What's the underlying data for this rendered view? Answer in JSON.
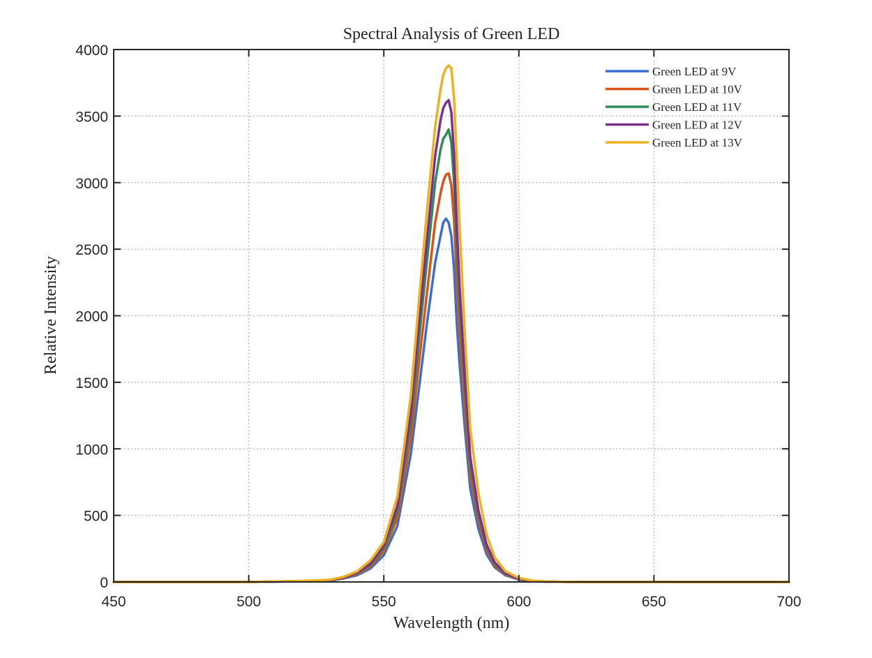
{
  "chart_data": {
    "type": "line",
    "title": "Spectral Analysis of Green LED",
    "xlabel": "Wavelength (nm)",
    "ylabel": "Relative Intensity",
    "xlim": [
      450,
      700
    ],
    "ylim": [
      0,
      4000
    ],
    "xticks": [
      450,
      500,
      550,
      600,
      650,
      700
    ],
    "yticks": [
      0,
      500,
      1000,
      1500,
      2000,
      2500,
      3000,
      3500,
      4000
    ],
    "grid": true,
    "legend_position": "top-right",
    "x": [
      450,
      500,
      520,
      530,
      535,
      540,
      545,
      550,
      555,
      560,
      563,
      566,
      569,
      571,
      572,
      573,
      574,
      575,
      576,
      577,
      578,
      580,
      582,
      585,
      588,
      591,
      595,
      600,
      605,
      610,
      620,
      650,
      700
    ],
    "series": [
      {
        "name": "Green LED at 9V",
        "color": "#3b6fcf",
        "values": [
          0,
          0,
          5,
          10,
          25,
          50,
          100,
          200,
          420,
          960,
          1450,
          1950,
          2400,
          2600,
          2700,
          2730,
          2700,
          2600,
          2350,
          1950,
          1650,
          1150,
          700,
          400,
          210,
          110,
          50,
          18,
          6,
          2,
          0,
          0,
          0
        ]
      },
      {
        "name": "Green LED at 10V",
        "color": "#d95319",
        "values": [
          0,
          0,
          6,
          12,
          28,
          58,
          115,
          230,
          480,
          1080,
          1640,
          2180,
          2700,
          2920,
          3010,
          3060,
          3070,
          2980,
          2720,
          2280,
          1880,
          1300,
          800,
          460,
          240,
          125,
          56,
          20,
          7,
          2,
          0,
          0,
          0
        ]
      },
      {
        "name": "Green LED at 11V",
        "color": "#2e8b57",
        "values": [
          0,
          0,
          7,
          13,
          31,
          64,
          128,
          255,
          530,
          1200,
          1820,
          2420,
          3000,
          3250,
          3330,
          3360,
          3400,
          3300,
          3000,
          2520,
          2100,
          1440,
          880,
          505,
          265,
          138,
          62,
          22,
          8,
          3,
          0,
          0,
          0
        ]
      },
      {
        "name": "Green LED at 12V",
        "color": "#7e2f8e",
        "values": [
          0,
          0,
          7,
          14,
          33,
          68,
          137,
          275,
          570,
          1280,
          1940,
          2580,
          3200,
          3470,
          3560,
          3600,
          3620,
          3530,
          3210,
          2700,
          2240,
          1540,
          940,
          540,
          285,
          148,
          66,
          24,
          8,
          3,
          0,
          0,
          0
        ]
      },
      {
        "name": "Green LED at 13V",
        "color": "#edb120",
        "values": [
          0,
          0,
          8,
          16,
          38,
          78,
          160,
          300,
          640,
          1400,
          2110,
          2800,
          3420,
          3700,
          3810,
          3860,
          3880,
          3860,
          3630,
          3180,
          2700,
          1850,
          1150,
          670,
          360,
          185,
          80,
          30,
          10,
          3,
          0,
          0,
          0
        ]
      }
    ]
  }
}
